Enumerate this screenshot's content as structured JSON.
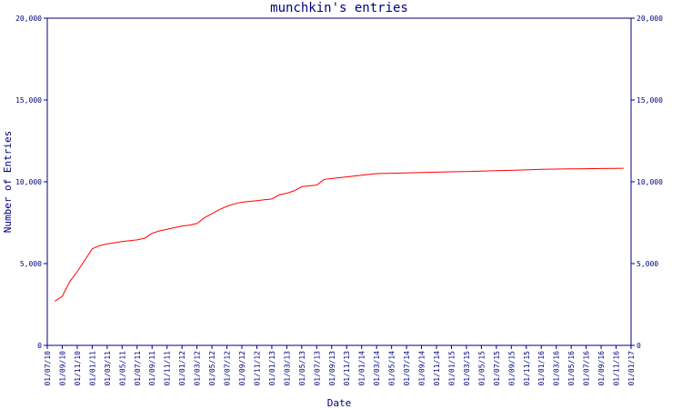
{
  "chart_data": {
    "type": "line",
    "title": "munchkin's entries",
    "xlabel": "Date",
    "ylabel": "Number of Entries",
    "ylim": [
      0,
      20000
    ],
    "yticks": [
      0,
      5000,
      10000,
      15000,
      20000
    ],
    "ytick_labels": [
      "0",
      "5,000",
      "10,000",
      "15,000",
      "20,000"
    ],
    "x_tick_labels": [
      "01/07/10",
      "01/09/10",
      "01/11/10",
      "01/01/11",
      "01/03/11",
      "01/05/11",
      "01/07/11",
      "01/09/11",
      "01/11/11",
      "01/01/12",
      "01/03/12",
      "01/05/12",
      "01/07/12",
      "01/09/12",
      "01/11/12",
      "01/01/13",
      "01/03/13",
      "01/05/13",
      "01/07/13",
      "01/09/13",
      "01/11/13",
      "01/01/14",
      "01/03/14",
      "01/05/14",
      "01/07/14",
      "01/09/14",
      "01/11/14",
      "01/01/15",
      "01/03/15",
      "01/05/15",
      "01/07/15",
      "01/09/15",
      "01/11/15",
      "01/01/16",
      "01/03/16",
      "01/05/16",
      "01/07/16",
      "01/09/16",
      "01/11/16",
      "01/01/17"
    ],
    "grid": false,
    "series": [
      {
        "color": "#ff0000",
        "x": [
          "01/08/10",
          "01/09/10",
          "01/10/10",
          "01/11/10",
          "01/12/10",
          "01/01/11",
          "01/02/11",
          "01/03/11",
          "01/05/11",
          "01/07/11",
          "01/08/11",
          "01/09/11",
          "01/10/11",
          "01/11/11",
          "01/01/12",
          "01/02/12",
          "01/03/12",
          "01/04/12",
          "01/05/12",
          "01/06/12",
          "01/07/12",
          "01/08/12",
          "01/09/12",
          "01/11/12",
          "01/12/12",
          "01/01/13",
          "01/02/13",
          "01/03/13",
          "01/04/13",
          "01/05/13",
          "01/06/13",
          "01/07/13",
          "01/08/13",
          "01/09/13",
          "01/10/13",
          "01/11/13",
          "01/01/14",
          "01/02/14",
          "01/03/14",
          "01/05/14",
          "01/07/14",
          "01/09/14",
          "01/11/14",
          "01/01/15",
          "01/03/15",
          "01/05/15",
          "01/07/15",
          "01/09/15",
          "01/11/15",
          "01/01/16",
          "01/03/16",
          "01/05/16",
          "01/07/16",
          "01/09/16",
          "01/11/16",
          "01/12/16"
        ],
        "y": [
          2700,
          3000,
          3900,
          4500,
          5200,
          5900,
          6100,
          6200,
          6350,
          6450,
          6550,
          6850,
          7000,
          7100,
          7300,
          7350,
          7450,
          7800,
          8050,
          8300,
          8500,
          8650,
          8750,
          8850,
          8900,
          8950,
          9200,
          9300,
          9450,
          9700,
          9750,
          9800,
          10150,
          10200,
          10250,
          10300,
          10400,
          10450,
          10500,
          10520,
          10540,
          10570,
          10590,
          10610,
          10630,
          10650,
          10680,
          10700,
          10730,
          10760,
          10780,
          10790,
          10800,
          10810,
          10820,
          10830
        ]
      }
    ]
  }
}
